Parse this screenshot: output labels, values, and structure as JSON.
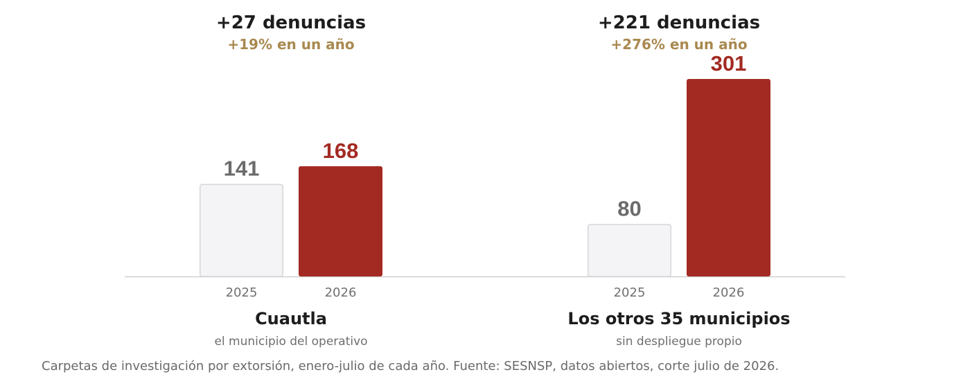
{
  "chart_data": {
    "type": "bar",
    "categories": [
      "Cuautla",
      "Los otros 35 municipios"
    ],
    "ylim": [
      0,
      301
    ],
    "groups": [
      {
        "name": "Cuautla",
        "subtitle": "el municipio del operativo",
        "headline": "+27 denuncias",
        "change": "+19% en un año",
        "bars": [
          {
            "year": "2025",
            "value": 141
          },
          {
            "year": "2026",
            "value": 168
          }
        ]
      },
      {
        "name": "Los otros 35 municipios",
        "subtitle": "sin despliegue propio",
        "headline": "+221 denuncias",
        "change": "+276% en un año",
        "bars": [
          {
            "year": "2025",
            "value": 80
          },
          {
            "year": "2026",
            "value": 301
          }
        ]
      }
    ],
    "grid": false,
    "legend": "none"
  },
  "colors": {
    "bar_2025": "#f4f4f7",
    "bar_2025_stroke": "#d6d6d9",
    "bar_2026": "#a32a23",
    "value_2025": "#6b6b6b",
    "value_2026": "#a32a23",
    "baseline": "#cfcfcf"
  },
  "footnote": "Carpetas de investigación por extorsión, enero-julio de cada año. Fuente: SESNSP, datos abiertos, corte julio de 2026."
}
